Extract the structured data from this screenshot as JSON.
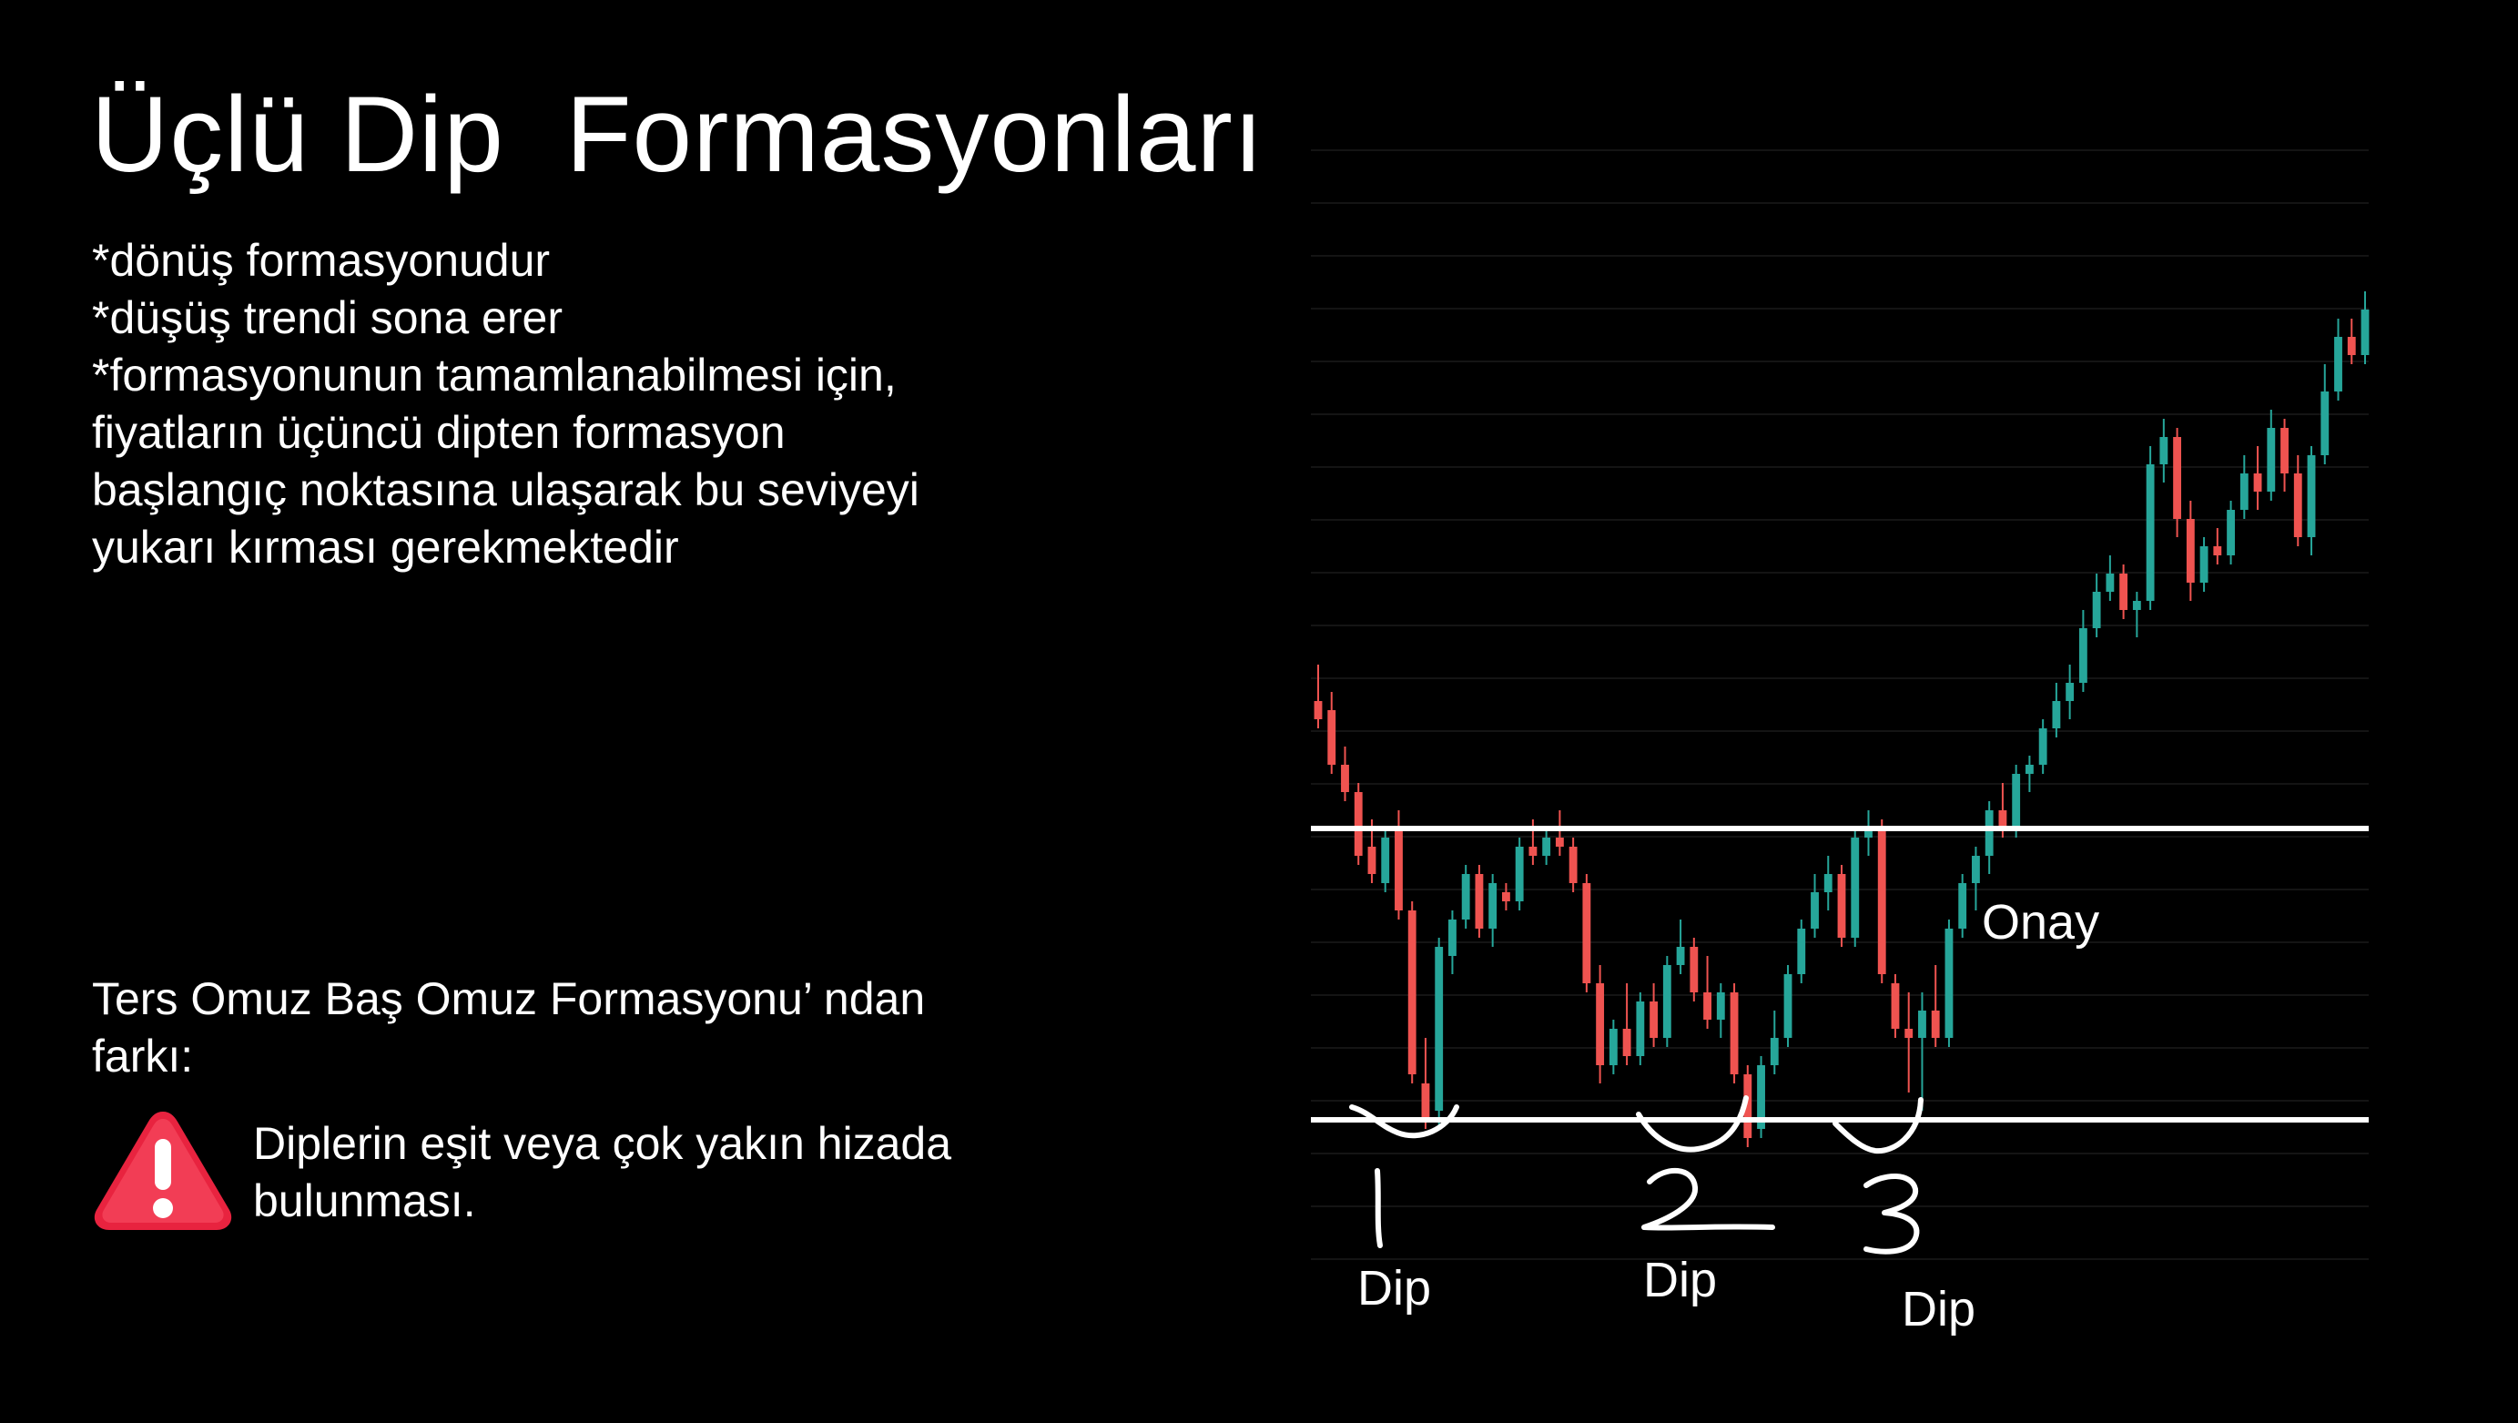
{
  "slide": {
    "title": "Üçlü Dip  Formasyonları",
    "bullets": [
      "*dönüş formasyonudur",
      "*düşüş trendi sona erer",
      "*formasyonunun tamamlanabilmesi için,",
      "fiyatların üçüncü dipten formasyon",
      "başlangıç noktasına ulaşarak bu seviyeyi",
      "yukarı kırması gerekmektedir"
    ],
    "difference_heading": "Ters Omuz Baş Omuz Formasyonu’ ndan farkı:",
    "warning_text": "Diplerin eşit veya çok yakın hizada bulunması.",
    "warning_icon": "warning-triangle-icon",
    "colors": {
      "background": "#000000",
      "text": "#ffffff",
      "candle_up": "#26a69a",
      "candle_down": "#ef5350",
      "warning": "#e8233f"
    }
  },
  "chart_data": {
    "type": "candlestick",
    "title": "",
    "annotations": {
      "confirmation_label": "Onay",
      "dip_labels": [
        "Dip",
        "Dip",
        "Dip"
      ],
      "dip_numbers": [
        "1",
        "2",
        "3"
      ]
    },
    "levels": {
      "neckline": 62,
      "support": 30
    },
    "candles": [
      {
        "o": 76,
        "h": 80,
        "l": 73,
        "c": 74
      },
      {
        "o": 75,
        "h": 77,
        "l": 68,
        "c": 69
      },
      {
        "o": 69,
        "h": 71,
        "l": 65,
        "c": 66
      },
      {
        "o": 66,
        "h": 67,
        "l": 58,
        "c": 59
      },
      {
        "o": 60,
        "h": 63,
        "l": 56,
        "c": 57
      },
      {
        "o": 56,
        "h": 62,
        "l": 55,
        "c": 61
      },
      {
        "o": 62,
        "h": 64,
        "l": 52,
        "c": 53
      },
      {
        "o": 53,
        "h": 54,
        "l": 34,
        "c": 35
      },
      {
        "o": 34,
        "h": 39,
        "l": 29,
        "c": 30
      },
      {
        "o": 31,
        "h": 50,
        "l": 29,
        "c": 49
      },
      {
        "o": 48,
        "h": 53,
        "l": 46,
        "c": 52
      },
      {
        "o": 52,
        "h": 58,
        "l": 51,
        "c": 57
      },
      {
        "o": 57,
        "h": 58,
        "l": 50,
        "c": 51
      },
      {
        "o": 51,
        "h": 57,
        "l": 49,
        "c": 56
      },
      {
        "o": 55,
        "h": 56,
        "l": 53,
        "c": 54
      },
      {
        "o": 54,
        "h": 61,
        "l": 53,
        "c": 60
      },
      {
        "o": 60,
        "h": 63,
        "l": 58,
        "c": 59
      },
      {
        "o": 59,
        "h": 62,
        "l": 58,
        "c": 61
      },
      {
        "o": 61,
        "h": 64,
        "l": 59,
        "c": 60
      },
      {
        "o": 60,
        "h": 61,
        "l": 55,
        "c": 56
      },
      {
        "o": 56,
        "h": 57,
        "l": 44,
        "c": 45
      },
      {
        "o": 45,
        "h": 47,
        "l": 34,
        "c": 36
      },
      {
        "o": 36,
        "h": 41,
        "l": 35,
        "c": 40
      },
      {
        "o": 40,
        "h": 45,
        "l": 36,
        "c": 37
      },
      {
        "o": 37,
        "h": 44,
        "l": 36,
        "c": 43
      },
      {
        "o": 43,
        "h": 45,
        "l": 38,
        "c": 39
      },
      {
        "o": 39,
        "h": 48,
        "l": 38,
        "c": 47
      },
      {
        "o": 47,
        "h": 52,
        "l": 46,
        "c": 49
      },
      {
        "o": 49,
        "h": 50,
        "l": 43,
        "c": 44
      },
      {
        "o": 44,
        "h": 48,
        "l": 40,
        "c": 41
      },
      {
        "o": 41,
        "h": 45,
        "l": 39,
        "c": 44
      },
      {
        "o": 44,
        "h": 45,
        "l": 34,
        "c": 35
      },
      {
        "o": 35,
        "h": 36,
        "l": 27,
        "c": 28
      },
      {
        "o": 29,
        "h": 37,
        "l": 28,
        "c": 36
      },
      {
        "o": 36,
        "h": 42,
        "l": 35,
        "c": 39
      },
      {
        "o": 39,
        "h": 47,
        "l": 38,
        "c": 46
      },
      {
        "o": 46,
        "h": 52,
        "l": 45,
        "c": 51
      },
      {
        "o": 51,
        "h": 57,
        "l": 50,
        "c": 55
      },
      {
        "o": 55,
        "h": 59,
        "l": 53,
        "c": 57
      },
      {
        "o": 57,
        "h": 58,
        "l": 49,
        "c": 50
      },
      {
        "o": 50,
        "h": 62,
        "l": 49,
        "c": 61
      },
      {
        "o": 61,
        "h": 64,
        "l": 59,
        "c": 62
      },
      {
        "o": 62,
        "h": 63,
        "l": 45,
        "c": 46
      },
      {
        "o": 45,
        "h": 46,
        "l": 39,
        "c": 40
      },
      {
        "o": 40,
        "h": 44,
        "l": 33,
        "c": 39
      },
      {
        "o": 39,
        "h": 44,
        "l": 31,
        "c": 42
      },
      {
        "o": 42,
        "h": 47,
        "l": 38,
        "c": 39
      },
      {
        "o": 39,
        "h": 52,
        "l": 38,
        "c": 51
      },
      {
        "o": 51,
        "h": 57,
        "l": 50,
        "c": 56
      },
      {
        "o": 56,
        "h": 60,
        "l": 53,
        "c": 59
      },
      {
        "o": 59,
        "h": 65,
        "l": 57,
        "c": 64
      },
      {
        "o": 64,
        "h": 67,
        "l": 61,
        "c": 62
      },
      {
        "o": 62,
        "h": 69,
        "l": 61,
        "c": 68
      },
      {
        "o": 68,
        "h": 70,
        "l": 66,
        "c": 69
      },
      {
        "o": 69,
        "h": 74,
        "l": 68,
        "c": 73
      },
      {
        "o": 73,
        "h": 78,
        "l": 72,
        "c": 76
      },
      {
        "o": 76,
        "h": 80,
        "l": 74,
        "c": 78
      },
      {
        "o": 78,
        "h": 86,
        "l": 77,
        "c": 84
      },
      {
        "o": 84,
        "h": 90,
        "l": 83,
        "c": 88
      },
      {
        "o": 88,
        "h": 92,
        "l": 87,
        "c": 90
      },
      {
        "o": 90,
        "h": 91,
        "l": 85,
        "c": 86
      },
      {
        "o": 86,
        "h": 88,
        "l": 83,
        "c": 87
      },
      {
        "o": 87,
        "h": 104,
        "l": 86,
        "c": 102
      },
      {
        "o": 102,
        "h": 107,
        "l": 100,
        "c": 105
      },
      {
        "o": 105,
        "h": 106,
        "l": 94,
        "c": 96
      },
      {
        "o": 96,
        "h": 98,
        "l": 87,
        "c": 89
      },
      {
        "o": 89,
        "h": 94,
        "l": 88,
        "c": 93
      },
      {
        "o": 93,
        "h": 95,
        "l": 91,
        "c": 92
      },
      {
        "o": 92,
        "h": 98,
        "l": 91,
        "c": 97
      },
      {
        "o": 97,
        "h": 103,
        "l": 96,
        "c": 101
      },
      {
        "o": 101,
        "h": 104,
        "l": 97,
        "c": 99
      },
      {
        "o": 99,
        "h": 108,
        "l": 98,
        "c": 106
      },
      {
        "o": 106,
        "h": 107,
        "l": 99,
        "c": 101
      },
      {
        "o": 101,
        "h": 103,
        "l": 93,
        "c": 94
      },
      {
        "o": 94,
        "h": 104,
        "l": 92,
        "c": 103
      },
      {
        "o": 103,
        "h": 113,
        "l": 102,
        "c": 110
      },
      {
        "o": 110,
        "h": 118,
        "l": 109,
        "c": 116
      },
      {
        "o": 116,
        "h": 118,
        "l": 113,
        "c": 114
      },
      {
        "o": 114,
        "h": 121,
        "l": 113,
        "c": 119
      }
    ]
  }
}
